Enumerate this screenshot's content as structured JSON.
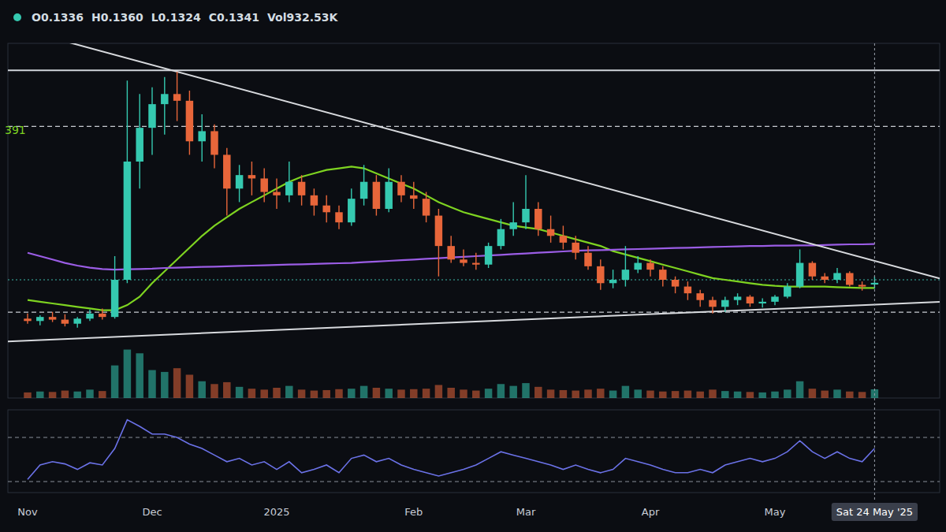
{
  "chart_data": [
    {
      "type": "candlestick",
      "header": [
        "O0.1336",
        "H0.1360",
        "L0.1324",
        "C0.1341",
        "Vol932.53K"
      ],
      "annotations": [
        "391"
      ],
      "categories": [
        "Nov",
        null,
        null,
        null,
        null,
        null,
        null,
        null,
        null,
        null,
        "Dec",
        null,
        null,
        null,
        null,
        null,
        null,
        null,
        null,
        null,
        "2025",
        null,
        null,
        null,
        null,
        null,
        null,
        null,
        null,
        null,
        null,
        "Feb",
        null,
        null,
        null,
        null,
        null,
        null,
        null,
        null,
        "Mar",
        null,
        null,
        null,
        null,
        null,
        null,
        null,
        null,
        null,
        "Apr",
        null,
        null,
        null,
        null,
        null,
        null,
        null,
        null,
        null,
        "May",
        null,
        null,
        null,
        null,
        null,
        null,
        null,
        null
      ],
      "open": [
        0.1235,
        0.1228,
        0.124,
        0.1232,
        0.122,
        0.1235,
        0.125,
        0.124,
        0.135,
        0.17,
        0.18,
        0.187,
        0.19,
        0.188,
        0.176,
        0.179,
        0.172,
        0.162,
        0.166,
        0.165,
        0.161,
        0.16,
        0.164,
        0.16,
        0.157,
        0.155,
        0.152,
        0.159,
        0.164,
        0.156,
        0.164,
        0.16,
        0.159,
        0.154,
        0.145,
        0.141,
        0.14,
        0.1395,
        0.145,
        0.15,
        0.152,
        0.156,
        0.15,
        0.148,
        0.146,
        0.143,
        0.139,
        0.134,
        0.135,
        0.138,
        0.14,
        0.138,
        0.135,
        0.133,
        0.131,
        0.129,
        0.127,
        0.129,
        0.13,
        0.128,
        0.1285,
        0.13,
        0.133,
        0.14,
        0.136,
        0.135,
        0.137,
        0.1335,
        0.1336
      ],
      "high": [
        0.125,
        0.1245,
        0.1255,
        0.1248,
        0.124,
        0.1262,
        0.1265,
        0.142,
        0.194,
        0.19,
        0.192,
        0.195,
        0.1966,
        0.191,
        0.184,
        0.181,
        0.174,
        0.169,
        0.17,
        0.168,
        0.165,
        0.17,
        0.166,
        0.162,
        0.16,
        0.157,
        0.162,
        0.169,
        0.166,
        0.168,
        0.166,
        0.164,
        0.161,
        0.156,
        0.148,
        0.144,
        0.143,
        0.146,
        0.153,
        0.158,
        0.166,
        0.158,
        0.154,
        0.151,
        0.148,
        0.145,
        0.141,
        0.138,
        0.145,
        0.142,
        0.141,
        0.139,
        0.136,
        0.1345,
        0.132,
        0.13,
        0.13,
        0.131,
        0.1305,
        0.1295,
        0.1305,
        0.134,
        0.144,
        0.1405,
        0.137,
        0.1385,
        0.1375,
        0.1345,
        0.136
      ],
      "low": [
        0.122,
        0.1215,
        0.1225,
        0.1212,
        0.1208,
        0.1228,
        0.1232,
        0.1235,
        0.134,
        0.162,
        0.172,
        0.178,
        0.182,
        0.172,
        0.17,
        0.168,
        0.154,
        0.158,
        0.16,
        0.158,
        0.156,
        0.158,
        0.157,
        0.154,
        0.152,
        0.15,
        0.151,
        0.157,
        0.154,
        0.155,
        0.158,
        0.156,
        0.152,
        0.136,
        0.14,
        0.139,
        0.138,
        0.1385,
        0.144,
        0.148,
        0.15,
        0.148,
        0.146,
        0.144,
        0.141,
        0.138,
        0.132,
        0.1325,
        0.133,
        0.137,
        0.136,
        0.133,
        0.131,
        0.129,
        0.127,
        0.125,
        0.1255,
        0.1275,
        0.127,
        0.1268,
        0.1275,
        0.1295,
        0.1325,
        0.135,
        0.134,
        0.134,
        0.133,
        0.1318,
        0.1324
      ],
      "close": [
        0.1228,
        0.124,
        0.1232,
        0.122,
        0.1235,
        0.125,
        0.124,
        0.135,
        0.17,
        0.18,
        0.187,
        0.19,
        0.188,
        0.176,
        0.179,
        0.172,
        0.162,
        0.166,
        0.165,
        0.161,
        0.16,
        0.164,
        0.16,
        0.157,
        0.155,
        0.152,
        0.159,
        0.164,
        0.156,
        0.164,
        0.16,
        0.159,
        0.154,
        0.145,
        0.141,
        0.14,
        0.1395,
        0.145,
        0.15,
        0.152,
        0.156,
        0.15,
        0.148,
        0.146,
        0.143,
        0.139,
        0.134,
        0.135,
        0.138,
        0.14,
        0.138,
        0.135,
        0.133,
        0.131,
        0.129,
        0.127,
        0.129,
        0.13,
        0.128,
        0.1285,
        0.13,
        0.133,
        0.14,
        0.136,
        0.135,
        0.137,
        0.1335,
        0.133,
        0.1341
      ],
      "series": [
        {
          "type": "line",
          "color": "#7ed321",
          "values": [
            0.129,
            0.1285,
            0.128,
            0.1275,
            0.127,
            0.1265,
            0.126,
            0.126,
            0.1275,
            0.13,
            0.134,
            0.1375,
            0.141,
            0.1445,
            0.148,
            0.151,
            0.1535,
            0.156,
            0.158,
            0.16,
            0.162,
            0.164,
            0.1655,
            0.1665,
            0.1675,
            0.168,
            0.1685,
            0.168,
            0.1665,
            0.165,
            0.1635,
            0.162,
            0.16,
            0.158,
            0.1565,
            0.155,
            0.154,
            0.153,
            0.152,
            0.151,
            0.1505,
            0.15,
            0.149,
            0.148,
            0.147,
            0.146,
            0.145,
            0.1435,
            0.1425,
            0.1415,
            0.1405,
            0.1395,
            0.1385,
            0.1375,
            0.1365,
            0.1355,
            0.135,
            0.1345,
            0.134,
            0.1335,
            0.1332,
            0.133,
            0.133,
            0.133,
            0.133,
            0.1328,
            0.1327,
            0.1326,
            0.1326
          ]
        },
        {
          "type": "line",
          "color": "#9b5de5",
          "values": [
            0.143,
            0.142,
            0.141,
            0.14,
            0.1392,
            0.1386,
            0.1382,
            0.138,
            0.1381,
            0.1382,
            0.1383,
            0.1385,
            0.1386,
            0.1387,
            0.1388,
            0.1389,
            0.139,
            0.1391,
            0.1392,
            0.1393,
            0.1394,
            0.1395,
            0.1396,
            0.1397,
            0.1398,
            0.1399,
            0.14,
            0.1402,
            0.1404,
            0.1406,
            0.1408,
            0.141,
            0.1412,
            0.1414,
            0.1416,
            0.1418,
            0.142,
            0.1422,
            0.1424,
            0.1426,
            0.1428,
            0.143,
            0.1432,
            0.1434,
            0.1436,
            0.1437,
            0.1438,
            0.1439,
            0.144,
            0.1441,
            0.1442,
            0.1443,
            0.1444,
            0.1445,
            0.1446,
            0.1447,
            0.1448,
            0.1449,
            0.145,
            0.145,
            0.1451,
            0.1451,
            0.1452,
            0.1452,
            0.1453,
            0.1454,
            0.1455,
            0.1455,
            0.1456
          ]
        }
      ],
      "trendlines": [
        {
          "x": [
            12,
            62
          ],
          "values": [
            0.1966,
            0.1466
          ]
        },
        {
          "x": [
            0,
            55
          ],
          "values": [
            0.117,
            0.1256
          ]
        }
      ],
      "levels": [
        {
          "value": 0.197,
          "line_style": "solid",
          "color": "#d0d4da"
        },
        {
          "value": 0.1804,
          "line_style": "dashed",
          "color": "#c8ccd2"
        },
        {
          "value": 0.135,
          "line_style": "dotted",
          "color": "#3fb8a8"
        },
        {
          "value": 0.1254,
          "line_style": "dashed",
          "color": "#c8ccd2"
        }
      ],
      "crosshair": {
        "x": 68,
        "label": "Sat 24 May '25"
      },
      "ylim": [
        0.1,
        0.205
      ],
      "grid": false,
      "tick_labels": "x"
    },
    {
      "type": "bar",
      "values": [
        600,
        700,
        650,
        800,
        700,
        900,
        750,
        3500,
        5200,
        4800,
        3000,
        2800,
        3200,
        2500,
        1800,
        1500,
        1700,
        1200,
        1000,
        900,
        1100,
        1300,
        900,
        800,
        850,
        950,
        1000,
        1300,
        1100,
        1000,
        900,
        950,
        1000,
        1400,
        1100,
        900,
        800,
        1000,
        1500,
        1300,
        1600,
        1200,
        900,
        850,
        800,
        900,
        1000,
        800,
        1300,
        900,
        800,
        700,
        750,
        800,
        700,
        900,
        750,
        700,
        650,
        600,
        700,
        900,
        1800,
        1000,
        800,
        900,
        700,
        650,
        932.53
      ],
      "ylim": [
        0,
        5500
      ],
      "tick_labels": false
    },
    {
      "type": "line",
      "color": "#6b72e8",
      "line_style": "solid",
      "values": [
        32,
        45,
        48,
        46,
        41,
        47,
        45,
        60,
        86,
        80,
        73,
        73,
        70,
        64,
        60,
        54,
        48,
        51,
        45,
        48,
        41,
        48,
        38,
        41,
        45,
        38,
        51,
        54,
        48,
        51,
        45,
        41,
        38,
        35,
        38,
        41,
        45,
        51,
        57,
        54,
        51,
        48,
        45,
        41,
        45,
        41,
        38,
        41,
        51,
        48,
        45,
        41,
        38,
        38,
        41,
        38,
        45,
        48,
        51,
        48,
        51,
        57,
        67,
        57,
        51,
        57,
        51,
        48,
        60
      ],
      "ylim": [
        20,
        95
      ],
      "yticks": [
        30,
        70
      ],
      "tick_labels": false
    }
  ]
}
